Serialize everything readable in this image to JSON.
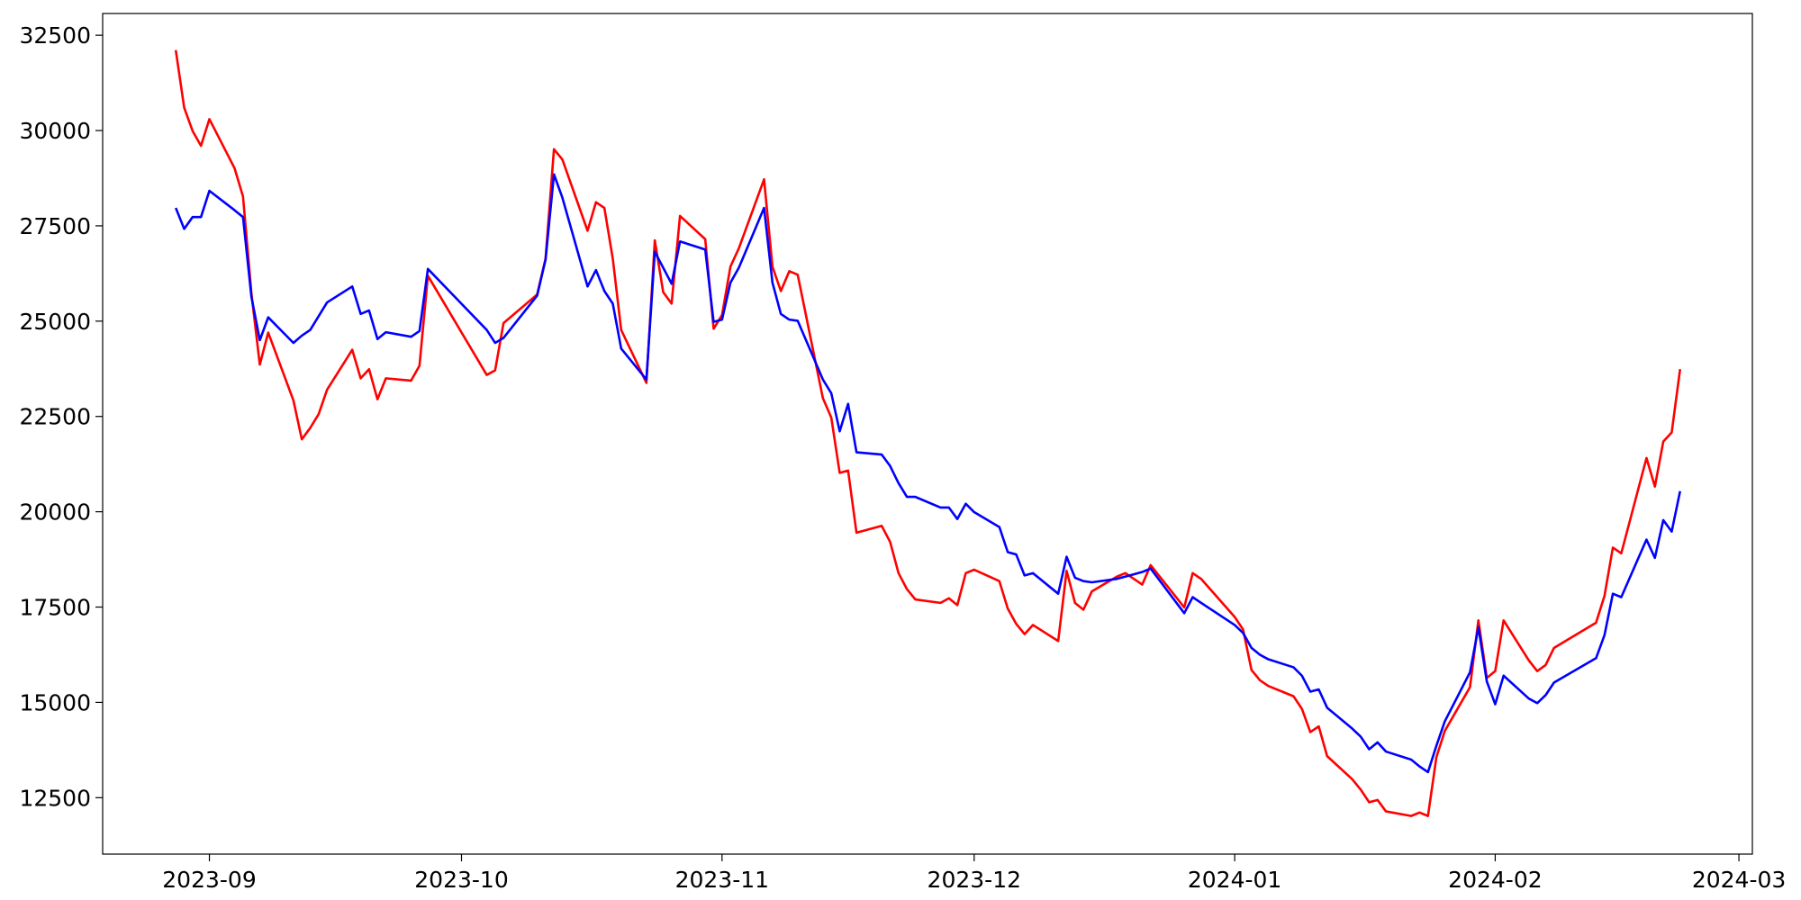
{
  "chart_data": {
    "type": "line",
    "x": [
      -4,
      -3,
      -2,
      -1,
      0,
      3,
      4,
      5,
      6,
      7,
      10,
      11,
      12,
      13,
      14,
      17,
      18,
      19,
      20,
      21,
      24,
      25,
      26,
      33,
      34,
      35,
      39,
      40,
      41,
      42,
      45,
      46,
      47,
      48,
      49,
      52,
      53,
      54,
      55,
      56,
      59,
      60,
      61,
      62,
      63,
      66,
      67,
      68,
      69,
      70,
      73,
      74,
      75,
      76,
      77,
      80,
      81,
      82,
      83,
      84,
      87,
      88,
      89,
      90,
      91,
      94,
      95,
      96,
      97,
      98,
      101,
      102,
      103,
      104,
      105,
      108,
      109,
      110,
      111,
      112,
      116,
      117,
      118,
      122,
      123,
      124,
      125,
      126,
      129,
      130,
      131,
      132,
      133,
      136,
      137,
      138,
      139,
      140,
      143,
      144,
      145,
      146,
      147,
      150,
      151,
      152,
      153,
      154,
      157,
      158,
      159,
      160,
      165,
      166,
      167,
      168,
      171,
      172,
      173,
      174,
      175
    ],
    "series": [
      {
        "color": "#ff0000",
        "values": [
          32110,
          30600,
          29990,
          29600,
          30300,
          29010,
          28270,
          25730,
          23860,
          24700,
          22920,
          21900,
          22200,
          22560,
          23200,
          24250,
          23500,
          23740,
          22950,
          23500,
          23440,
          23830,
          26190,
          23590,
          23710,
          24950,
          25700,
          26640,
          29510,
          29240,
          27370,
          28120,
          27970,
          26640,
          24770,
          23380,
          27120,
          25760,
          25460,
          27760,
          27150,
          24800,
          25160,
          26430,
          26910,
          28720,
          26430,
          25790,
          26310,
          26220,
          22980,
          22470,
          21020,
          21080,
          19450,
          19630,
          19210,
          18390,
          17970,
          17700,
          17610,
          17730,
          17550,
          18390,
          18480,
          18180,
          17460,
          17060,
          16790,
          17030,
          16610,
          18450,
          17610,
          17430,
          17910,
          18300,
          18390,
          18240,
          18090,
          18600,
          17490,
          18390,
          18240,
          17240,
          16910,
          15850,
          15580,
          15430,
          15160,
          14830,
          14220,
          14370,
          13590,
          12980,
          12710,
          12380,
          12440,
          12140,
          12020,
          12110,
          12020,
          13560,
          14250,
          15400,
          17150,
          15640,
          15820,
          17150,
          16100,
          15820,
          15980,
          16430,
          17090,
          17790,
          19060,
          18910,
          21410,
          20660,
          21840,
          22080,
          23740
        ]
      },
      {
        "color": "#0000ff",
        "values": [
          27970,
          27420,
          27730,
          27730,
          28420,
          27910,
          27730,
          25640,
          24500,
          25100,
          24430,
          24620,
          24770,
          25130,
          25490,
          25910,
          25190,
          25280,
          24530,
          24710,
          24590,
          24740,
          26370,
          24770,
          24430,
          24560,
          25670,
          26610,
          28850,
          28240,
          25910,
          26340,
          25790,
          25460,
          24280,
          23470,
          26820,
          26400,
          25980,
          27090,
          26880,
          24980,
          25040,
          26010,
          26400,
          27970,
          26010,
          25190,
          25040,
          25010,
          23470,
          23110,
          22110,
          22830,
          21560,
          21500,
          21200,
          20750,
          20390,
          20390,
          20110,
          20110,
          19810,
          20210,
          19990,
          19600,
          18940,
          18880,
          18330,
          18390,
          17850,
          18820,
          18270,
          18180,
          18150,
          18240,
          18300,
          18360,
          18420,
          18510,
          17340,
          17760,
          17610,
          17030,
          16820,
          16430,
          16250,
          16130,
          15920,
          15700,
          15280,
          15340,
          14860,
          14310,
          14100,
          13770,
          13950,
          13710,
          13500,
          13320,
          13170,
          13860,
          14500,
          15790,
          16970,
          15550,
          14950,
          15700,
          15100,
          14980,
          15190,
          15520,
          16160,
          16760,
          17850,
          17760,
          19270,
          18790,
          19780,
          19480,
          20540
        ]
      }
    ],
    "xlim": [
      -12.7,
      183.6
    ],
    "xticks": [
      {
        "value": 0,
        "label": "2023-09"
      },
      {
        "value": 30,
        "label": "2023-10"
      },
      {
        "value": 61,
        "label": "2023-11"
      },
      {
        "value": 91,
        "label": "2023-12"
      },
      {
        "value": 122,
        "label": "2024-01"
      },
      {
        "value": 153,
        "label": "2024-02"
      },
      {
        "value": 182,
        "label": "2024-03"
      }
    ],
    "ylim": [
      11020,
      33070
    ],
    "yticks": [
      12500,
      15000,
      17500,
      20000,
      22500,
      25000,
      27500,
      30000,
      32500
    ],
    "grid": false
  }
}
